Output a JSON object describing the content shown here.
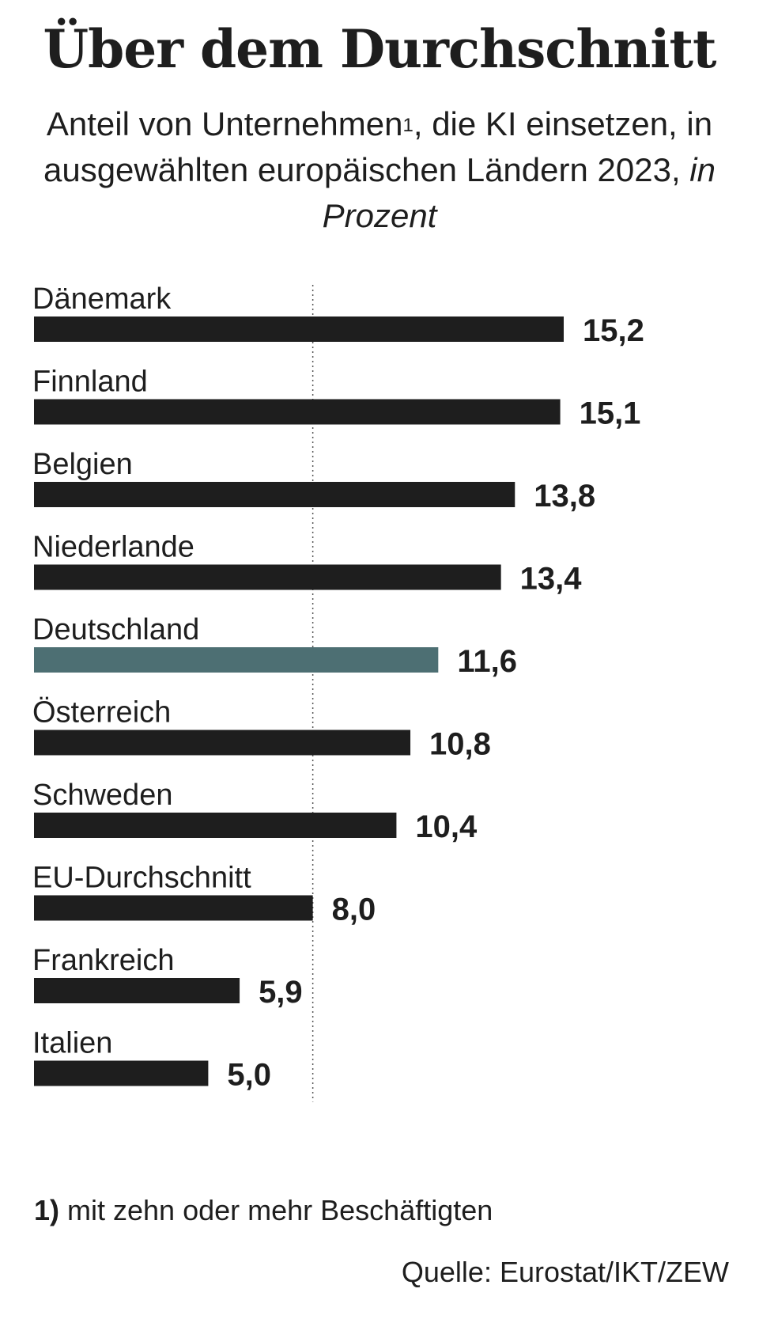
{
  "title": "Über dem Durchschnitt",
  "subtitle": {
    "text_before": "Anteil von Unternehmen",
    "footnote_mark": "1",
    "text_after": ", die KI einsetzen, in ausgewählten europäischen Ländern 2023, ",
    "unit": "in Prozent"
  },
  "chart_data": {
    "type": "bar",
    "orientation": "horizontal",
    "categories": [
      "Dänemark",
      "Finnland",
      "Belgien",
      "Niederlande",
      "Deutschland",
      "Österreich",
      "Schweden",
      "EU-Durchschnitt",
      "Frankreich",
      "Italien"
    ],
    "values": [
      15.2,
      15.1,
      13.8,
      13.4,
      11.6,
      10.8,
      10.4,
      8.0,
      5.9,
      5.0
    ],
    "value_labels": [
      "15,2",
      "15,1",
      "13,8",
      "13,4",
      "11,6",
      "10,8",
      "10,4",
      "8,0",
      "5,9",
      "5,0"
    ],
    "reference_line": 8.0,
    "highlight": "Deutschland",
    "xlim": [
      0,
      15.2
    ],
    "grid": false,
    "colors": {
      "bar": "#1e1e1e",
      "highlight": "#4d6f73",
      "text": "#1e1e1e"
    }
  },
  "footnote": {
    "mark": "1)",
    "text": " mit zehn oder mehr Beschäftigten"
  },
  "source": "Quelle: Eurostat/IKT/ZEW"
}
